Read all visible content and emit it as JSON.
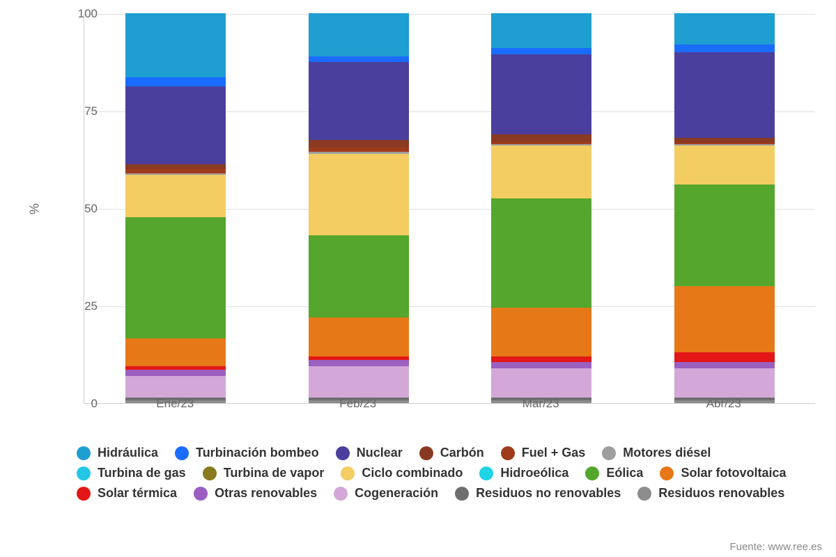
{
  "chart": {
    "type": "stacked_bar_percent",
    "background_color": "#ffffff",
    "grid_color": "#e0e0e0",
    "axis_color": "#d0d0d0",
    "tick_label_color": "#666666",
    "tick_label_fontsize": 17,
    "legend_fontsize": 18,
    "legend_fontweight": 700,
    "legend_text_color": "#333333",
    "yaxis": {
      "label": "%",
      "ylim": [
        0,
        100
      ],
      "ticks": [
        0,
        25,
        50,
        75,
        100
      ]
    },
    "categories": [
      "Ene/23",
      "Feb/23",
      "Mar/23",
      "Abr/23"
    ],
    "bar_width_ratio": 0.55,
    "series": [
      {
        "key": "hidraulica",
        "label": "Hidráulica",
        "color": "#1f9ed1"
      },
      {
        "key": "turbinacion_bombeo",
        "label": "Turbinación bombeo",
        "color": "#1a6cff"
      },
      {
        "key": "nuclear",
        "label": "Nuclear",
        "color": "#4a3f9c"
      },
      {
        "key": "carbon",
        "label": "Carbón",
        "color": "#8a3a22"
      },
      {
        "key": "fuel_gas",
        "label": "Fuel + Gas",
        "color": "#a03b1c"
      },
      {
        "key": "motores_diesel",
        "label": "Motores diésel",
        "color": "#9e9e9e"
      },
      {
        "key": "turbina_gas",
        "label": "Turbina de gas",
        "color": "#22c7e5"
      },
      {
        "key": "turbina_vapor",
        "label": "Turbina de vapor",
        "color": "#8a7a1e"
      },
      {
        "key": "ciclo_combinado",
        "label": "Ciclo combinado",
        "color": "#f3cc62"
      },
      {
        "key": "hidroeolica",
        "label": "Hidroeólica",
        "color": "#1fd4e5"
      },
      {
        "key": "eolica",
        "label": "Eólica",
        "color": "#54a62c"
      },
      {
        "key": "solar_fotovoltaica",
        "label": "Solar fotovoltaica",
        "color": "#e77817"
      },
      {
        "key": "solar_termica",
        "label": "Solar térmica",
        "color": "#e31717"
      },
      {
        "key": "otras_renovables",
        "label": "Otras renovables",
        "color": "#9b5fc0"
      },
      {
        "key": "cogeneracion",
        "label": "Cogeneración",
        "color": "#d3a8d8"
      },
      {
        "key": "residuos_no_renov",
        "label": "Residuos no renovables",
        "color": "#6e6e6e"
      },
      {
        "key": "residuos_renov",
        "label": "Residuos renovables",
        "color": "#8c8c8c"
      }
    ],
    "stack_order_top_to_bottom": [
      "hidraulica",
      "turbinacion_bombeo",
      "nuclear",
      "carbon",
      "fuel_gas",
      "motores_diesel",
      "turbina_gas",
      "turbina_vapor",
      "ciclo_combinado",
      "hidroeolica",
      "eolica",
      "solar_fotovoltaica",
      "solar_termica",
      "otras_renovables",
      "cogeneracion",
      "residuos_no_renov",
      "residuos_renov"
    ],
    "data": {
      "Ene/23": {
        "hidraulica": 16.5,
        "turbinacion_bombeo": 2.3,
        "nuclear": 20.0,
        "carbon": 1.2,
        "fuel_gas": 1.0,
        "motores_diesel": 0.4,
        "turbina_gas": 0.0,
        "turbina_vapor": 0.0,
        "ciclo_combinado": 11.0,
        "hidroeolica": 0.0,
        "eolica": 31.0,
        "solar_fotovoltaica": 7.2,
        "solar_termica": 0.8,
        "otras_renovables": 1.6,
        "cogeneracion": 5.5,
        "residuos_no_renov": 0.8,
        "residuos_renov": 0.7
      },
      "Feb/23": {
        "hidraulica": 11.0,
        "turbinacion_bombeo": 1.5,
        "nuclear": 20.0,
        "carbon": 2.0,
        "fuel_gas": 1.0,
        "motores_diesel": 0.5,
        "turbina_gas": 0.0,
        "turbina_vapor": 0.0,
        "ciclo_combinado": 21.0,
        "hidroeolica": 0.0,
        "eolica": 21.0,
        "solar_fotovoltaica": 10.0,
        "solar_termica": 1.0,
        "otras_renovables": 1.5,
        "cogeneracion": 8.0,
        "residuos_no_renov": 0.8,
        "residuos_renov": 0.7
      },
      "Mar/23": {
        "hidraulica": 9.0,
        "turbinacion_bombeo": 1.5,
        "nuclear": 20.5,
        "carbon": 2.0,
        "fuel_gas": 0.5,
        "motores_diesel": 0.5,
        "turbina_gas": 0.0,
        "turbina_vapor": 0.0,
        "ciclo_combinado": 13.5,
        "hidroeolica": 0.0,
        "eolica": 28.0,
        "solar_fotovoltaica": 12.5,
        "solar_termica": 1.5,
        "otras_renovables": 1.5,
        "cogeneracion": 7.5,
        "residuos_no_renov": 0.8,
        "residuos_renov": 0.7
      },
      "Abr/23": {
        "hidraulica": 8.0,
        "turbinacion_bombeo": 2.0,
        "nuclear": 22.0,
        "carbon": 1.2,
        "fuel_gas": 0.3,
        "motores_diesel": 0.5,
        "turbina_gas": 0.0,
        "turbina_vapor": 0.0,
        "ciclo_combinado": 10.0,
        "hidroeolica": 0.0,
        "eolica": 26.0,
        "solar_fotovoltaica": 17.0,
        "solar_termica": 2.5,
        "otras_renovables": 1.5,
        "cogeneracion": 7.5,
        "residuos_no_renov": 0.8,
        "residuos_renov": 0.7
      }
    }
  },
  "source_label": "Fuente: www.ree.es"
}
